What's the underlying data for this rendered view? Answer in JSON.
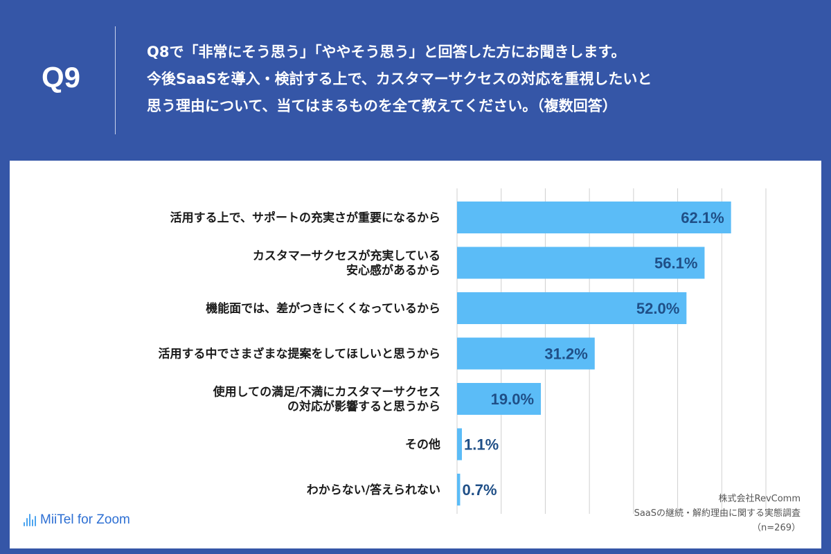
{
  "question": {
    "label": "Q9",
    "lines": [
      "Q8で「非常にそう思う」「ややそう思う」と回答した方にお聞きします。",
      "今後SaaSを導入・検討する上で、カスタマーサクセスの対応を重視したいと",
      "思う理由について、当てはまるものを全て教えてください。（複数回答）"
    ]
  },
  "colors": {
    "header_bg": "#3556a7",
    "bar": "#5bbcf7",
    "value_text": "#1f4f87",
    "grid": "#cfcfcf"
  },
  "chart_data": {
    "type": "bar",
    "orientation": "horizontal",
    "categories": [
      [
        "活用する上で、サポートの充実さが重要になるから"
      ],
      [
        "カスタマーサクセスが充実している",
        "安心感があるから"
      ],
      [
        "機能面では、差がつきにくくなっているから"
      ],
      [
        "活用する中でさまざまな提案をしてほしいと思うから"
      ],
      [
        "使用しての満足/不満にカスタマーサクセス",
        "の対応が影響すると思うから"
      ],
      [
        "その他"
      ],
      [
        "わからない/答えられない"
      ]
    ],
    "values": [
      62.1,
      56.1,
      52.0,
      31.2,
      19.0,
      1.1,
      0.7
    ],
    "value_labels": [
      "62.1%",
      "56.1%",
      "52.0%",
      "31.2%",
      "19.0%",
      "1.1%",
      "0.7%"
    ],
    "unit": "%",
    "xlim": [
      0,
      70
    ],
    "grid_step": 10,
    "grid": true
  },
  "branding": {
    "logo_text": "MiiTel for Zoom",
    "source_lines": [
      "株式会社RevComm",
      "SaaSの継続・解約理由に関する実態調査",
      "（n=269）"
    ]
  }
}
